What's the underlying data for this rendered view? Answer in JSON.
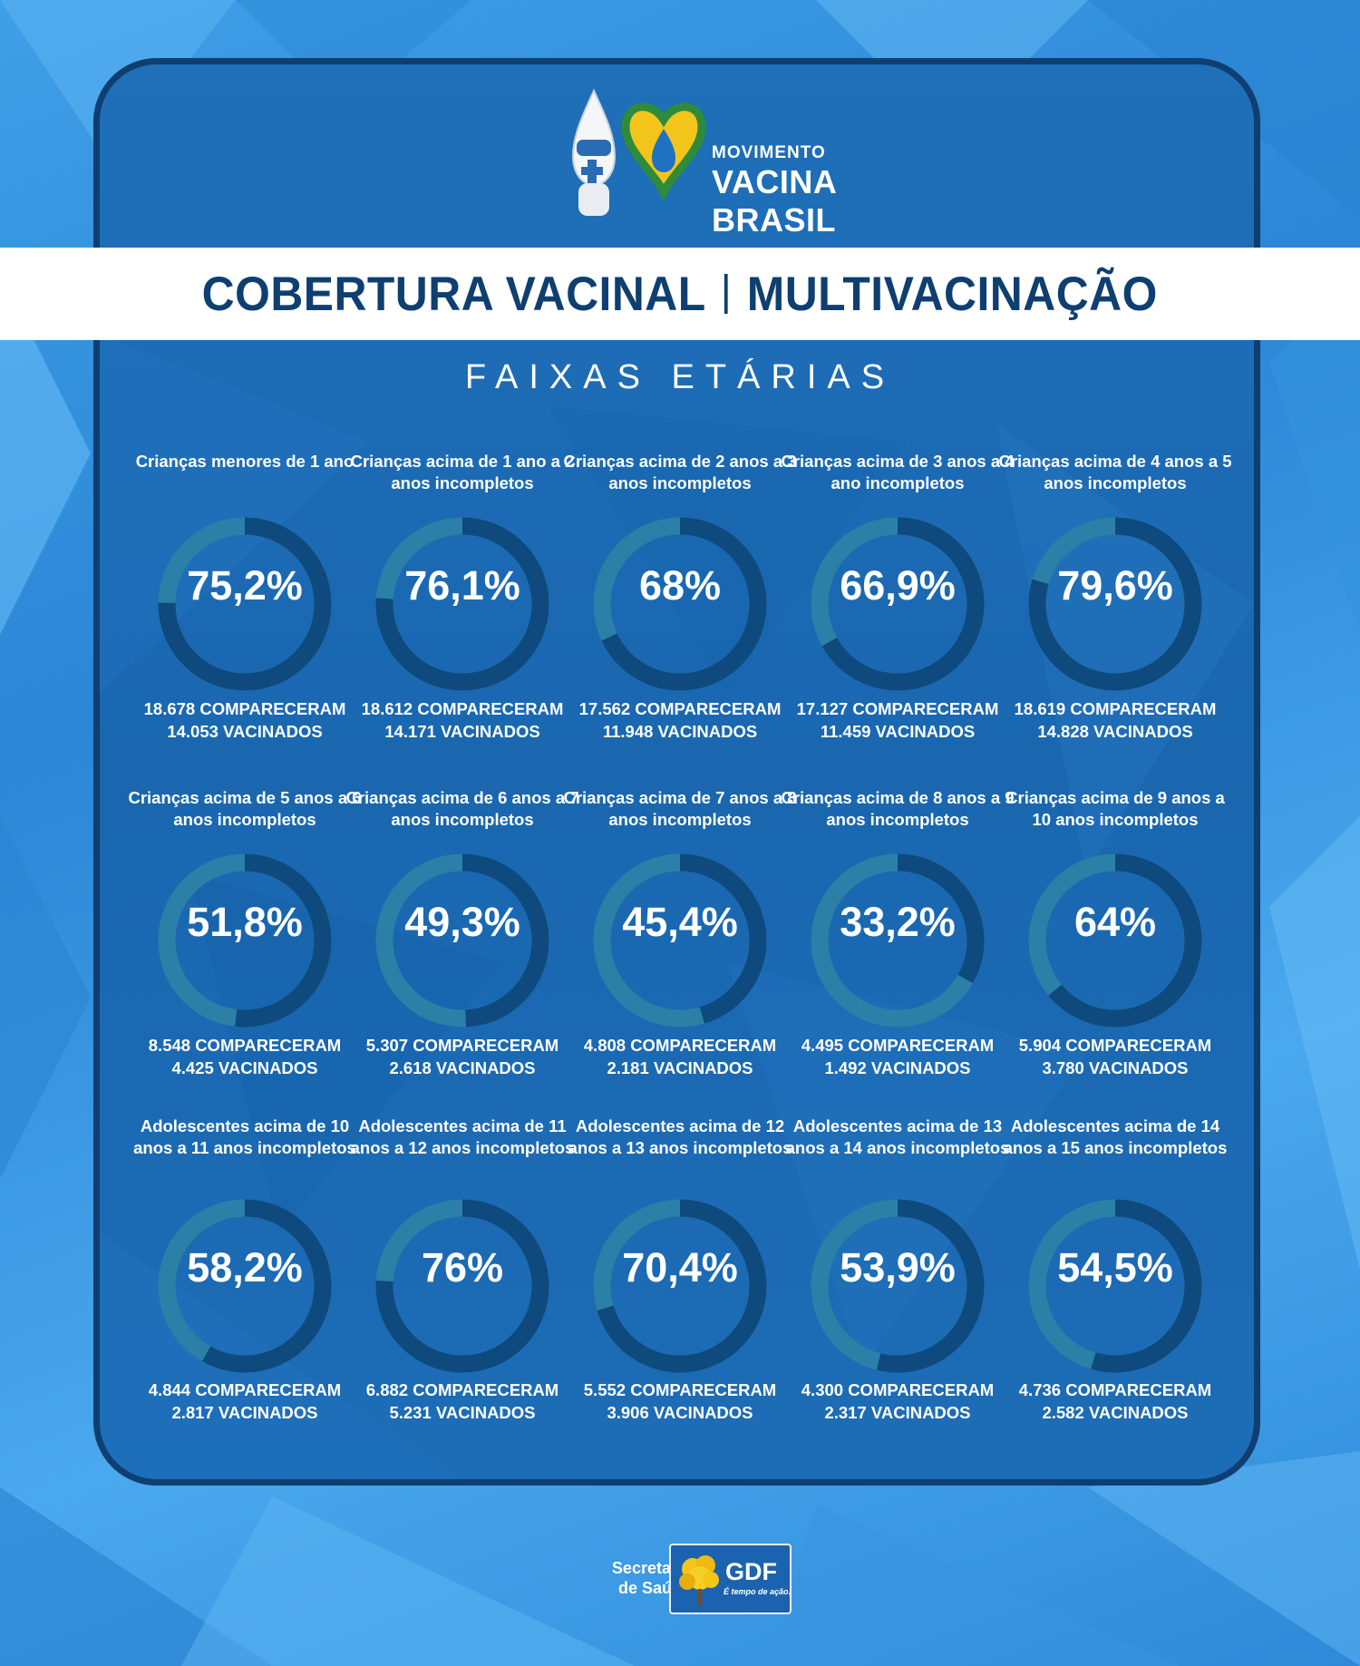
{
  "header": {
    "logo_line1": "MOVIMENTO",
    "logo_line2": "VACINA",
    "logo_line3": "BRASIL",
    "title_left": "COBERTURA VACINAL",
    "title_right": "MULTIVACINAÇÃO",
    "subtitle": "FAIXAS ETÁRIAS"
  },
  "colors": {
    "panel": "#1a67b0",
    "ring_filled": "#0e4a7e",
    "ring_remaining": "#2c7fa6",
    "title": "#0e3f70"
  },
  "groups": [
    {
      "label": "Crianças menores de 1 ano",
      "pct": "75,2%",
      "value": 75.2,
      "attended": "18.678 COMPARECERAM",
      "vaccinated": "14.053 VACINADOS"
    },
    {
      "label": "Crianças acima de 1 ano a 2 anos incompletos",
      "pct": "76,1%",
      "value": 76.1,
      "attended": "18.612 COMPARECERAM",
      "vaccinated": "14.171 VACINADOS"
    },
    {
      "label": "Crianças acima de 2 anos a 3 anos incompletos",
      "pct": "68%",
      "value": 68,
      "attended": "17.562 COMPARECERAM",
      "vaccinated": "11.948 VACINADOS"
    },
    {
      "label": "Crianças acima de 3 anos a 4 ano incompletos",
      "pct": "66,9%",
      "value": 66.9,
      "attended": "17.127 COMPARECERAM",
      "vaccinated": "11.459 VACINADOS"
    },
    {
      "label": "Crianças acima de 4 anos a 5 anos incompletos",
      "pct": "79,6%",
      "value": 79.6,
      "attended": "18.619 COMPARECERAM",
      "vaccinated": "14.828 VACINADOS"
    },
    {
      "label": "Crianças acima de 5 anos a 6 anos incompletos",
      "pct": "51,8%",
      "value": 51.8,
      "attended": "8.548 COMPARECERAM",
      "vaccinated": "4.425 VACINADOS"
    },
    {
      "label": "Crianças acima de 6 anos a 7 anos incompletos",
      "pct": "49,3%",
      "value": 49.3,
      "attended": "5.307 COMPARECERAM",
      "vaccinated": "2.618 VACINADOS"
    },
    {
      "label": "Crianças acima de 7 anos a 8 anos incompletos",
      "pct": "45,4%",
      "value": 45.4,
      "attended": "4.808 COMPARECERAM",
      "vaccinated": "2.181 VACINADOS"
    },
    {
      "label": "Crianças acima de 8 anos a 9 anos incompletos",
      "pct": "33,2%",
      "value": 33.2,
      "attended": "4.495 COMPARECERAM",
      "vaccinated": "1.492 VACINADOS"
    },
    {
      "label": "Crianças acima de 9 anos a 10 anos incompletos",
      "pct": "64%",
      "value": 64,
      "attended": "5.904 COMPARECERAM",
      "vaccinated": "3.780 VACINADOS"
    },
    {
      "label": "Adolescentes acima de 10 anos a 11 anos incompletos",
      "pct": "58,2%",
      "value": 58.2,
      "attended": "4.844 COMPARECERAM",
      "vaccinated": "2.817 VACINADOS"
    },
    {
      "label": "Adolescentes acima de 11 anos a 12 anos incompletos",
      "pct": "76%",
      "value": 76,
      "attended": "6.882 COMPARECERAM",
      "vaccinated": "5.231 VACINADOS"
    },
    {
      "label": "Adolescentes acima de 12 anos a 13 anos incompletos",
      "pct": "70,4%",
      "value": 70.4,
      "attended": "5.552 COMPARECERAM",
      "vaccinated": "3.906 VACINADOS"
    },
    {
      "label": "Adolescentes acima de 13 anos a 14 anos incompletos",
      "pct": "53,9%",
      "value": 53.9,
      "attended": "4.300 COMPARECERAM",
      "vaccinated": "2.317 VACINADOS"
    },
    {
      "label": "Adolescentes acima de 14 anos a 15 anos incompletos",
      "pct": "54,5%",
      "value": 54.5,
      "attended": "4.736 COMPARECERAM",
      "vaccinated": "2.582 VACINADOS"
    }
  ],
  "footer": {
    "secretaria_line1": "Secretaria",
    "secretaria_line2": "de Saúde",
    "gdf": "GDF",
    "gdf_tagline": "É tempo de ação."
  }
}
